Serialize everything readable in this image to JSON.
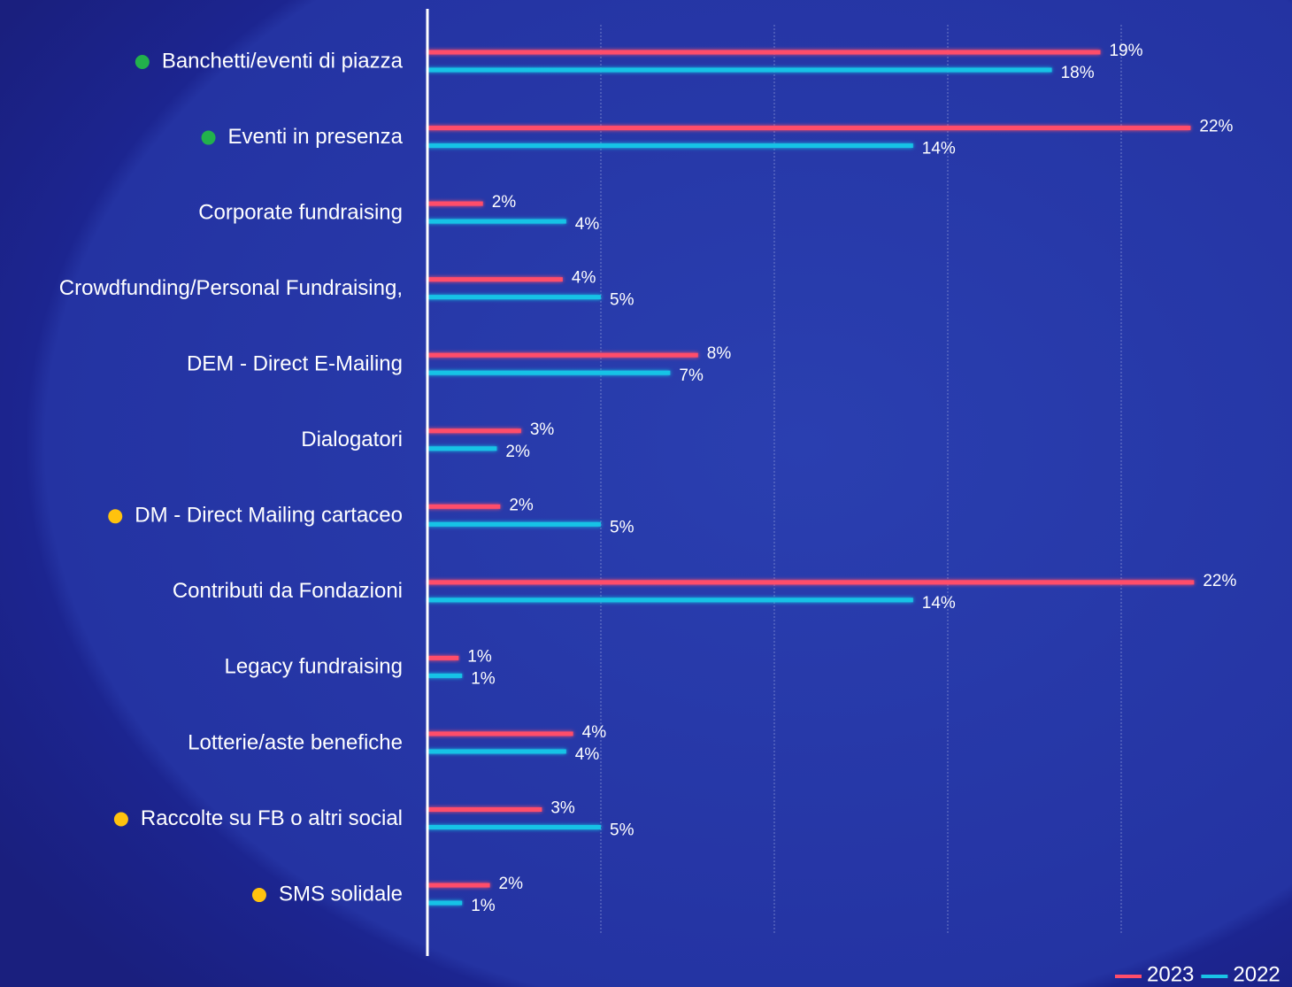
{
  "chart_data": {
    "type": "bar",
    "orientation": "horizontal",
    "categories": [
      "Banchetti/eventi di piazza",
      "Eventi in presenza",
      "Corporate fundraising",
      "Crowdfunding/Personal Fundraising,",
      "DEM - Direct E-Mailing",
      "Dialogatori",
      "DM - Direct Mailing cartaceo",
      "Contributi da Fondazioni",
      "Legacy fundraising",
      "Lotterie/aste benefiche",
      "Raccolte su FB o altri social",
      "SMS solidale"
    ],
    "category_markers": [
      "#22b14c",
      "#22b14c",
      null,
      null,
      null,
      null,
      "#ffc20e",
      null,
      null,
      null,
      "#ffc20e",
      "#ffc20e"
    ],
    "series": [
      {
        "name": "2023",
        "color": "#ff4d6a",
        "values": [
          19.4,
          22.0,
          1.6,
          3.9,
          7.8,
          2.7,
          2.1,
          22.1,
          0.9,
          4.2,
          3.3,
          1.8
        ],
        "value_labels": [
          "19%",
          "22%",
          "2%",
          "4%",
          "8%",
          "3%",
          "2%",
          "22%",
          "1%",
          "4%",
          "3%",
          "2%"
        ]
      },
      {
        "name": "2022",
        "color": "#19c3e6",
        "values": [
          18.0,
          14.0,
          4.0,
          5.0,
          7.0,
          2.0,
          5.0,
          14.0,
          1.0,
          4.0,
          5.0,
          1.0
        ],
        "value_labels": [
          "18%",
          "14%",
          "4%",
          "5%",
          "7%",
          "2%",
          "5%",
          "14%",
          "1%",
          "4%",
          "5%",
          "1%"
        ]
      }
    ],
    "xlim": [
      0,
      25
    ],
    "xticks": [
      0,
      5,
      10,
      15,
      20
    ],
    "grid": true,
    "legend": "bottom-right"
  }
}
